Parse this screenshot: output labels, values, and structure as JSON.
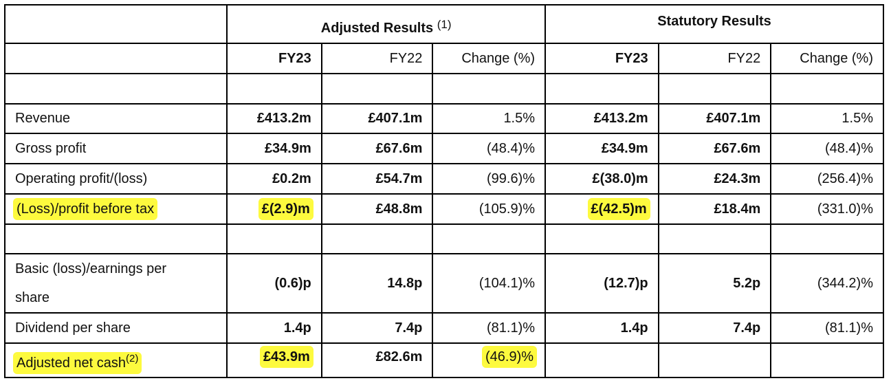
{
  "header": {
    "adjusted_title": "Adjusted Results",
    "adjusted_note": "(1)",
    "statutory_title": "Statutory Results"
  },
  "columns": {
    "adj_fy23": "FY23",
    "adj_fy22": "FY22",
    "adj_change": "Change (%)",
    "stat_fy23": "FY23",
    "stat_fy22": "FY22",
    "stat_change": "Change (%)"
  },
  "rows": {
    "revenue": {
      "label": "Revenue",
      "adj_fy23": "£413.2m",
      "adj_fy22": "£407.1m",
      "adj_change": "1.5%",
      "stat_fy23": "£413.2m",
      "stat_fy22": "£407.1m",
      "stat_change": "1.5%"
    },
    "gross_profit": {
      "label": "Gross profit",
      "adj_fy23": "£34.9m",
      "adj_fy22": "£67.6m",
      "adj_change": "(48.4)%",
      "stat_fy23": "£34.9m",
      "stat_fy22": "£67.6m",
      "stat_change": "(48.4)%"
    },
    "operating_profit": {
      "label": "Operating profit/(loss)",
      "adj_fy23": "£0.2m",
      "adj_fy22": "£54.7m",
      "adj_change": "(99.6)%",
      "stat_fy23": "£(38.0)m",
      "stat_fy22": "£24.3m",
      "stat_change": "(256.4)%"
    },
    "pbt": {
      "label": "(Loss)/profit before tax",
      "adj_fy23": "£(2.9)m",
      "adj_fy22": "£48.8m",
      "adj_change": "(105.9)%",
      "stat_fy23": "£(42.5)m",
      "stat_fy22": "£18.4m",
      "stat_change": "(331.0)%"
    },
    "eps": {
      "label_line1": "Basic (loss)/earnings per",
      "label_line2": "share",
      "adj_fy23": "(0.6)p",
      "adj_fy22": "14.8p",
      "adj_change": "(104.1)%",
      "stat_fy23": "(12.7)p",
      "stat_fy22": "5.2p",
      "stat_change": "(344.2)%"
    },
    "dividend": {
      "label": "Dividend per share",
      "adj_fy23": "1.4p",
      "adj_fy22": "7.4p",
      "adj_change": "(81.1)%",
      "stat_fy23": "1.4p",
      "stat_fy22": "7.4p",
      "stat_change": "(81.1)%"
    },
    "net_cash": {
      "label": "Adjusted net cash",
      "label_note": "(2)",
      "adj_fy23": "£43.9m",
      "adj_fy22": "£82.6m",
      "adj_change": "(46.9)%"
    }
  },
  "colors": {
    "highlight": "#fdfa3e",
    "border": "#000000"
  }
}
